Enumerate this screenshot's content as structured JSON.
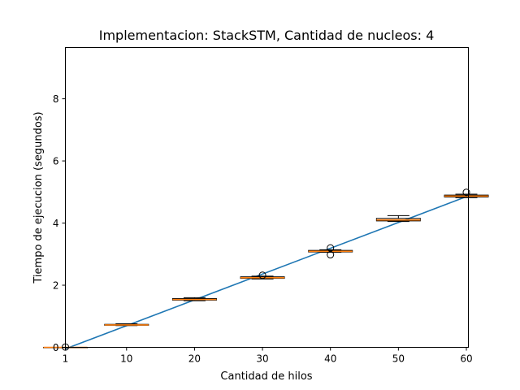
{
  "chart_data": {
    "type": "boxplot",
    "title": "Implementacion: StackSTM, Cantidad de nucleos: 4",
    "xlabel": "Cantidad de hilos",
    "ylabel": "Tiempo de ejecucion (segundos)",
    "xlim": [
      1,
      60.3
    ],
    "ylim": [
      0,
      9.65
    ],
    "x_ticks": [
      1,
      10,
      20,
      30,
      40,
      50,
      60
    ],
    "y_ticks": [
      0,
      2,
      4,
      6,
      8
    ],
    "grid": false,
    "colors": {
      "fit_line": "#1f77b4",
      "median": "#ff7f0e",
      "box": "#000000"
    },
    "boxes": [
      {
        "x": 1,
        "q1": 0.0,
        "median": 0.0,
        "q3": 0.0,
        "whisker_low": 0.0,
        "whisker_high": 0.0,
        "outliers": [
          0.01
        ]
      },
      {
        "x": 10,
        "q1": 0.71,
        "median": 0.72,
        "q3": 0.74,
        "whisker_low": 0.7,
        "whisker_high": 0.76,
        "outliers": []
      },
      {
        "x": 20,
        "q1": 1.52,
        "median": 1.54,
        "q3": 1.57,
        "whisker_low": 1.5,
        "whisker_high": 1.6,
        "outliers": []
      },
      {
        "x": 30,
        "q1": 2.22,
        "median": 2.24,
        "q3": 2.27,
        "whisker_low": 2.2,
        "whisker_high": 2.29,
        "outliers": [
          2.32
        ]
      },
      {
        "x": 40,
        "q1": 3.07,
        "median": 3.09,
        "q3": 3.12,
        "whisker_low": 3.06,
        "whisker_high": 3.14,
        "outliers": [
          2.98,
          3.2
        ]
      },
      {
        "x": 50,
        "q1": 4.07,
        "median": 4.1,
        "q3": 4.15,
        "whisker_low": 4.05,
        "whisker_high": 4.24,
        "outliers": []
      },
      {
        "x": 60,
        "q1": 4.84,
        "median": 4.87,
        "q3": 4.9,
        "whisker_low": 4.82,
        "whisker_high": 4.93,
        "outliers": [
          4.99
        ]
      }
    ],
    "fit_line": {
      "x": [
        1,
        60
      ],
      "y": [
        -0.05,
        4.85
      ]
    }
  }
}
